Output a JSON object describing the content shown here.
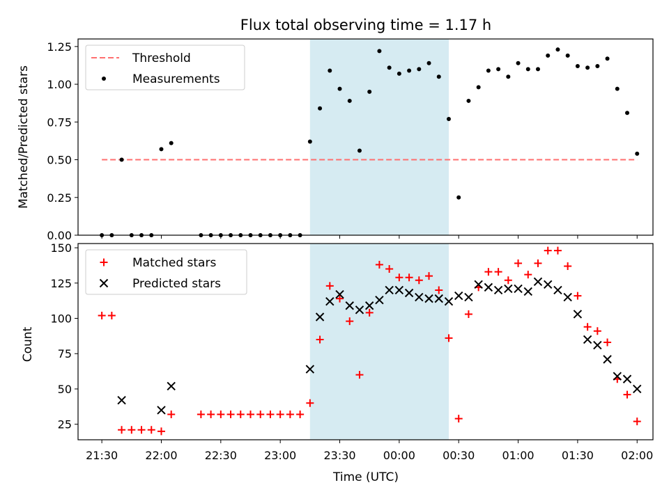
{
  "chart_data": [
    {
      "type": "scatter",
      "title": "Flux total observing time = 1.17 h",
      "xlabel": "",
      "ylabel": "Matched/Predicted stars",
      "ylim": [
        0,
        1.3
      ],
      "yticks": [
        "0.00",
        "0.25",
        "0.50",
        "0.75",
        "1.00",
        "1.25"
      ],
      "highlight_window": {
        "start": "23:15",
        "end": "00:25",
        "color": "#add8e6"
      },
      "legend_position": "top-left",
      "series": [
        {
          "name": "Threshold",
          "style": "dashed-line",
          "color": "#ff6f6f",
          "x": [
            "21:30",
            "02:00"
          ],
          "values": [
            0.5,
            0.5
          ]
        },
        {
          "name": "Measurements",
          "style": "dot",
          "color": "#000000",
          "x": [
            "21:30",
            "21:35",
            "21:40",
            "21:45",
            "21:50",
            "21:55",
            "22:00",
            "22:05",
            "22:20",
            "22:25",
            "22:30",
            "22:35",
            "22:40",
            "22:45",
            "22:50",
            "22:55",
            "23:00",
            "23:05",
            "23:10",
            "23:15",
            "23:20",
            "23:25",
            "23:30",
            "23:35",
            "23:40",
            "23:45",
            "23:50",
            "23:55",
            "00:00",
            "00:05",
            "00:10",
            "00:15",
            "00:20",
            "00:25",
            "00:30",
            "00:35",
            "00:40",
            "00:45",
            "00:50",
            "00:55",
            "01:00",
            "01:05",
            "01:10",
            "01:15",
            "01:20",
            "01:25",
            "01:30",
            "01:35",
            "01:40",
            "01:45",
            "01:50",
            "01:55",
            "02:00"
          ],
          "values": [
            0,
            0,
            0.5,
            0,
            0,
            0,
            0.57,
            0.61,
            0,
            0,
            0,
            0,
            0,
            0,
            0,
            0,
            0,
            0,
            0,
            0.62,
            0.84,
            1.09,
            0.97,
            0.89,
            0.56,
            0.95,
            1.22,
            1.11,
            1.07,
            1.09,
            1.1,
            1.14,
            1.05,
            0.77,
            0.25,
            0.89,
            0.98,
            1.09,
            1.1,
            1.05,
            1.14,
            1.1,
            1.1,
            1.19,
            1.23,
            1.19,
            1.12,
            1.11,
            1.12,
            1.17,
            0.97,
            0.81,
            0.54
          ]
        }
      ]
    },
    {
      "type": "scatter",
      "title": "",
      "xlabel": "Time (UTC)",
      "ylabel": "Count",
      "ylim": [
        14,
        153
      ],
      "yticks": [
        "25",
        "50",
        "75",
        "100",
        "125",
        "150"
      ],
      "xticks": [
        "21:30",
        "22:00",
        "22:30",
        "23:00",
        "23:30",
        "00:00",
        "00:30",
        "01:00",
        "01:30",
        "02:00"
      ],
      "highlight_window": {
        "start": "23:15",
        "end": "00:25",
        "color": "#add8e6"
      },
      "legend_position": "top-left",
      "series": [
        {
          "name": "Matched stars",
          "style": "plus",
          "color": "#ff0000",
          "x": [
            "21:30",
            "21:35",
            "21:40",
            "21:45",
            "21:50",
            "21:55",
            "22:00",
            "22:05",
            "22:20",
            "22:25",
            "22:30",
            "22:35",
            "22:40",
            "22:45",
            "22:50",
            "22:55",
            "23:00",
            "23:05",
            "23:10",
            "23:15",
            "23:20",
            "23:25",
            "23:30",
            "23:35",
            "23:40",
            "23:45",
            "23:50",
            "23:55",
            "00:00",
            "00:05",
            "00:10",
            "00:15",
            "00:20",
            "00:25",
            "00:30",
            "00:35",
            "00:40",
            "00:45",
            "00:50",
            "00:55",
            "01:00",
            "01:05",
            "01:10",
            "01:15",
            "01:20",
            "01:25",
            "01:30",
            "01:35",
            "01:40",
            "01:45",
            "01:50",
            "01:55",
            "02:00"
          ],
          "values": [
            102,
            102,
            21,
            21,
            21,
            21,
            20,
            32,
            32,
            32,
            32,
            32,
            32,
            32,
            32,
            32,
            32,
            32,
            32,
            40,
            85,
            123,
            114,
            98,
            60,
            104,
            138,
            135,
            129,
            129,
            127,
            130,
            120,
            86,
            29,
            103,
            122,
            133,
            133,
            127,
            139,
            131,
            139,
            148,
            148,
            137,
            116,
            94,
            91,
            83,
            57,
            46,
            27
          ]
        },
        {
          "name": "Predicted stars",
          "style": "x",
          "color": "#000000",
          "x": [
            "21:40",
            "22:00",
            "22:05",
            "23:15",
            "23:20",
            "23:25",
            "23:30",
            "23:35",
            "23:40",
            "23:45",
            "23:50",
            "23:55",
            "00:00",
            "00:05",
            "00:10",
            "00:15",
            "00:20",
            "00:25",
            "00:30",
            "00:35",
            "00:40",
            "00:45",
            "00:50",
            "00:55",
            "01:00",
            "01:05",
            "01:10",
            "01:15",
            "01:20",
            "01:25",
            "01:30",
            "01:35",
            "01:40",
            "01:45",
            "01:50",
            "01:55",
            "02:00"
          ],
          "values": [
            42,
            35,
            52,
            64,
            101,
            112,
            117,
            109,
            106,
            109,
            113,
            120,
            120,
            118,
            115,
            114,
            114,
            112,
            116,
            115,
            124,
            122,
            120,
            121,
            121,
            119,
            126,
            124,
            120,
            115,
            103,
            85,
            81,
            71,
            59,
            57,
            50
          ]
        }
      ]
    }
  ]
}
